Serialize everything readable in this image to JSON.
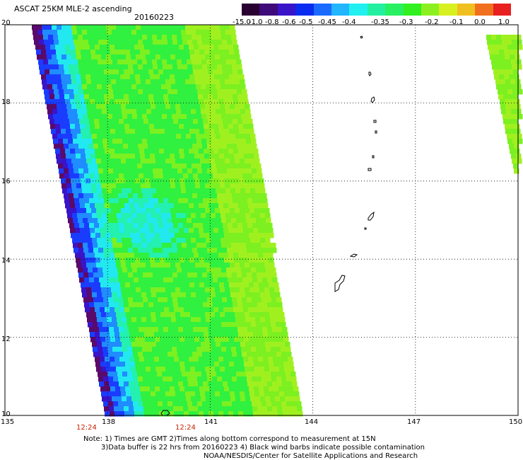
{
  "header": {
    "title": "ASCAT 25KM MLE-2 ascending",
    "date": "20160223"
  },
  "colorbar": {
    "labels": [
      "-15.0",
      "-1.0",
      "-0.8",
      "-0.6",
      "-0.5",
      "-0.45",
      "-0.4",
      "-0.35",
      "-0.3",
      "-0.2",
      "-0.1",
      "0.0",
      "1.0"
    ],
    "colors": [
      "#2a0030",
      "#3f0a7a",
      "#3a14c8",
      "#0a2cf0",
      "#1a6aff",
      "#21b6ff",
      "#22f0f0",
      "#22f0a0",
      "#28f060",
      "#30f020",
      "#8cf020",
      "#d8f020",
      "#f0c020",
      "#f07020",
      "#e82020"
    ]
  },
  "axes": {
    "lat_labels": [
      "20",
      "18",
      "16",
      "14",
      "12",
      "10"
    ],
    "lon_labels": [
      "135",
      "138",
      "141",
      "144",
      "147",
      "150"
    ],
    "time_labels": [
      "12:24",
      "12:24"
    ]
  },
  "map": {
    "lat_range": [
      10,
      20
    ],
    "lon_range": [
      135,
      150
    ],
    "field_colors": {
      "dark_purple": "#5a0a6a",
      "violet": "#3a14c8",
      "blue": "#1a3cff",
      "light_blue": "#1f8cff",
      "cyan": "#22e8f0",
      "aqua": "#24f0b0",
      "green": "#30f040",
      "yellow_green": "#7cf020",
      "lime": "#a0f020"
    }
  },
  "footer": {
    "note_line1": "Note: 1) Times are GMT 2)Times along bottom correspond to measurement at 15N",
    "note_line2": "3)Data buffer is 22 hrs from 20160223 4) Black wind barbs indicate possible contamination",
    "note_line3": "NOAA/NESDIS/Center for Satellite Applications and Research"
  }
}
